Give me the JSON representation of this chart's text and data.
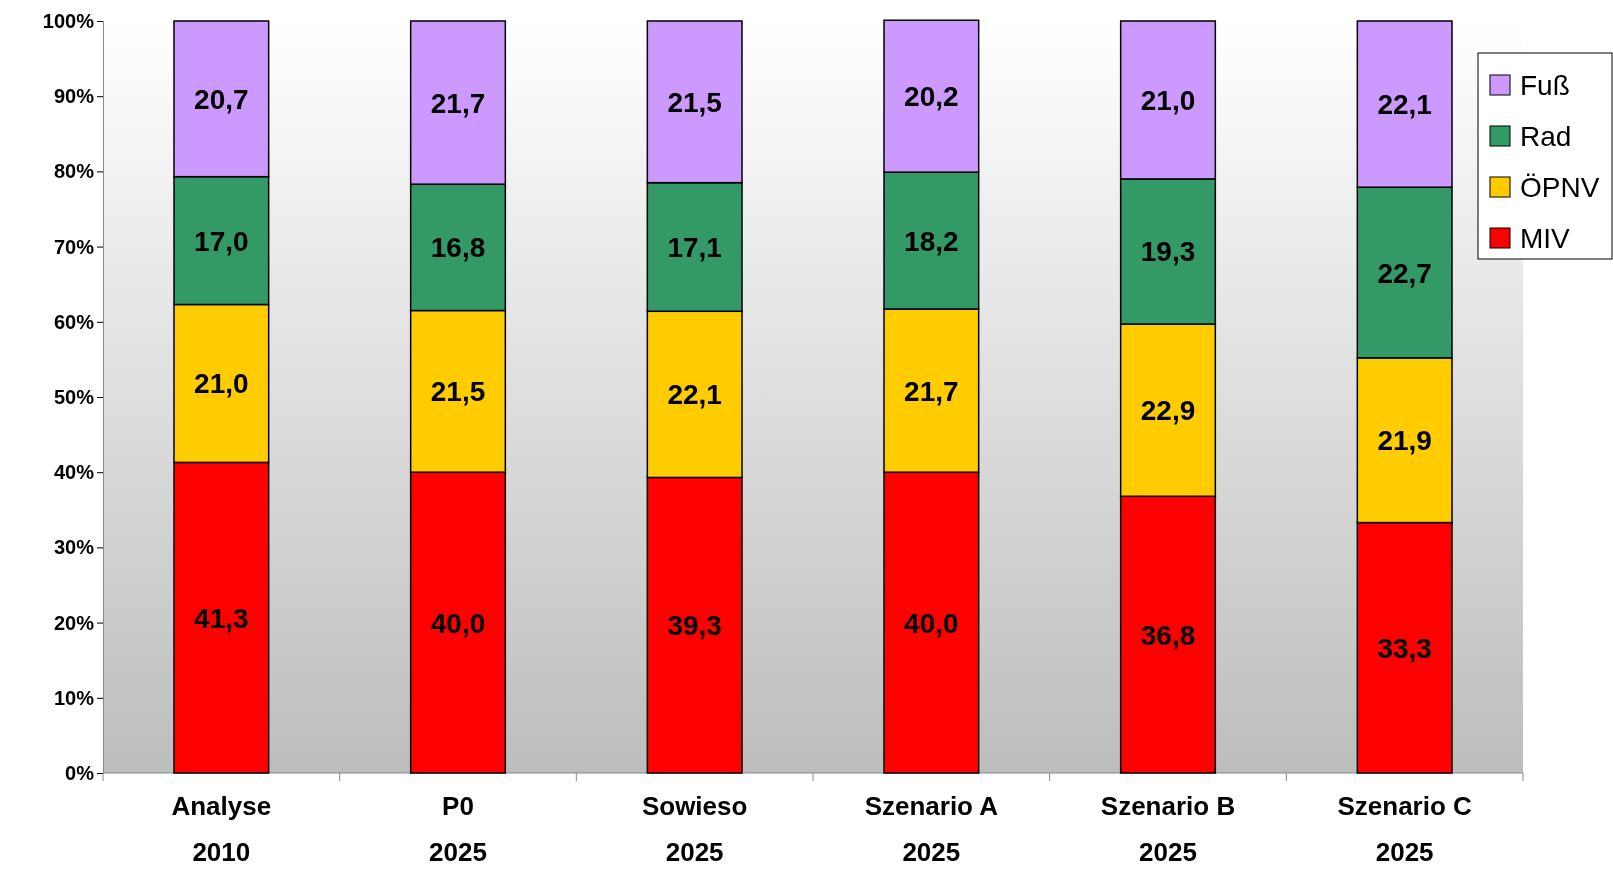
{
  "chart_data": {
    "type": "bar",
    "stacked": true,
    "legend": "top right",
    "grid": false,
    "categories": [
      "Analyse\n2010",
      "P0\n2025",
      "Sowieso\n2025",
      "Szenario A\n2025",
      "Szenario B\n2025",
      "Szenario C\n2025"
    ],
    "ylim": [
      0,
      100
    ],
    "yticks": [
      {
        "value": 0,
        "label": "0%"
      },
      {
        "value": 10,
        "label": "10%"
      },
      {
        "value": 20,
        "label": "20%"
      },
      {
        "value": 30,
        "label": "30%"
      },
      {
        "value": 40,
        "label": "40%"
      },
      {
        "value": 50,
        "label": "50%"
      },
      {
        "value": 60,
        "label": "60%"
      },
      {
        "value": 70,
        "label": "70%"
      },
      {
        "value": 80,
        "label": "80%"
      },
      {
        "value": 90,
        "label": "90%"
      },
      {
        "value": 100,
        "label": "100%"
      }
    ],
    "series": [
      {
        "name": "MIV",
        "color": "#ff0000",
        "values": [
          41.3,
          40.0,
          39.3,
          40.0,
          36.8,
          33.3
        ],
        "value_labels": [
          "41,3",
          "40,0",
          "39,3",
          "40,0",
          "36,8",
          "33,3"
        ]
      },
      {
        "name": "ÖPNV",
        "color": "#ffcc00",
        "values": [
          21.0,
          21.5,
          22.1,
          21.7,
          22.9,
          21.9
        ],
        "value_labels": [
          "21,0",
          "21,5",
          "22,1",
          "21,7",
          "22,9",
          "21,9"
        ]
      },
      {
        "name": "Rad",
        "color": "#339966",
        "values": [
          17.0,
          16.8,
          17.1,
          18.2,
          19.3,
          22.7
        ],
        "value_labels": [
          "17,0",
          "16,8",
          "17,1",
          "18,2",
          "19,3",
          "22,7"
        ]
      },
      {
        "name": "Fuß",
        "color": "#cc99ff",
        "values": [
          20.7,
          21.7,
          21.5,
          20.2,
          21.0,
          22.1
        ],
        "value_labels": [
          "20,7",
          "21,7",
          "21,5",
          "20,2",
          "21,0",
          "22,1"
        ]
      }
    ]
  }
}
